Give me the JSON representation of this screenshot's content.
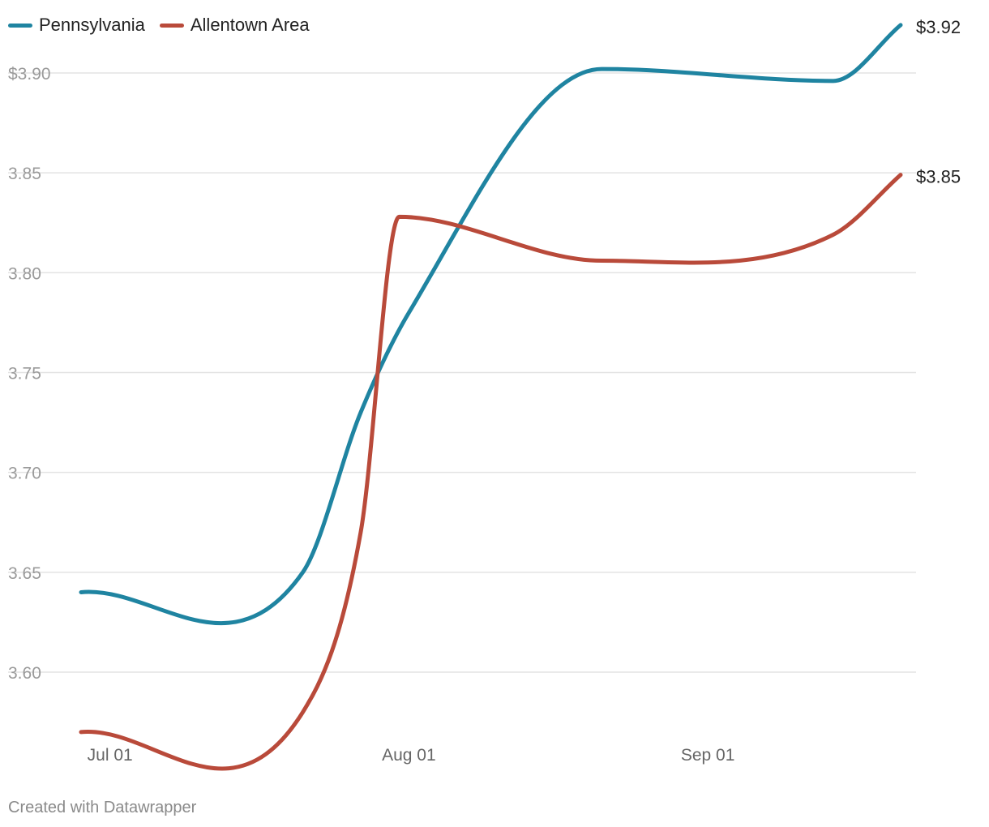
{
  "legend": [
    {
      "label": "Pennsylvania",
      "color": "#1f84a1"
    },
    {
      "label": "Allentown Area",
      "color": "#b94a3a"
    }
  ],
  "credit": "Created with Datawrapper",
  "chart_data": {
    "type": "line",
    "title": "",
    "xlabel": "",
    "ylabel": "",
    "ylim": [
      3.57,
      3.92
    ],
    "y_ticks": [
      {
        "value": 3.6,
        "label": "3.60"
      },
      {
        "value": 3.65,
        "label": "3.65"
      },
      {
        "value": 3.7,
        "label": "3.70"
      },
      {
        "value": 3.75,
        "label": "3.75"
      },
      {
        "value": 3.8,
        "label": "3.80"
      },
      {
        "value": 3.85,
        "label": "3.85"
      },
      {
        "value": 3.9,
        "label": "$3.90"
      }
    ],
    "x_ticks": [
      {
        "date": "2023-07-01",
        "label": "Jul 01"
      },
      {
        "date": "2023-08-01",
        "label": "Aug 01"
      },
      {
        "date": "2023-09-01",
        "label": "Sep 01"
      }
    ],
    "xlim": [
      "2023-06-28",
      "2023-09-21"
    ],
    "grid": true,
    "legend_position": "top-left",
    "series": [
      {
        "name": "Pennsylvania",
        "color": "#1f84a1",
        "end_label": "$3.92",
        "points": [
          {
            "x": "2023-06-28",
            "y": 3.64
          },
          {
            "x": "2023-07-21",
            "y": 3.65
          },
          {
            "x": "2023-07-27",
            "y": 3.73
          },
          {
            "x": "2023-08-01",
            "y": 3.78
          },
          {
            "x": "2023-08-21",
            "y": 3.902
          },
          {
            "x": "2023-09-14",
            "y": 3.896
          },
          {
            "x": "2023-09-21",
            "y": 3.924
          }
        ]
      },
      {
        "name": "Allentown Area",
        "color": "#b94a3a",
        "end_label": "$3.85",
        "points": [
          {
            "x": "2023-06-28",
            "y": 3.57
          },
          {
            "x": "2023-07-21",
            "y": 3.58
          },
          {
            "x": "2023-07-27",
            "y": 3.67
          },
          {
            "x": "2023-07-31",
            "y": 3.828
          },
          {
            "x": "2023-08-21",
            "y": 3.806
          },
          {
            "x": "2023-09-14",
            "y": 3.819
          },
          {
            "x": "2023-09-21",
            "y": 3.849
          }
        ]
      }
    ]
  }
}
